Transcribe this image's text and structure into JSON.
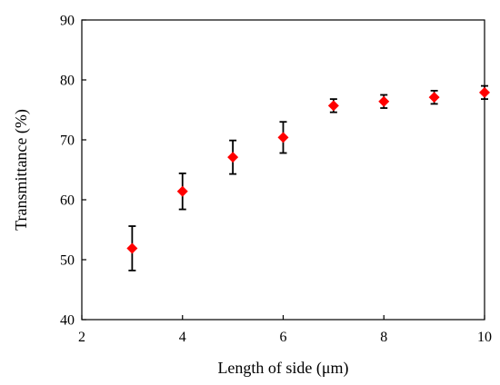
{
  "chart_data": {
    "type": "scatter",
    "title": "",
    "xlabel": "Length of side (μm)",
    "ylabel": "Transmittance (%)",
    "xlim": [
      2,
      10
    ],
    "ylim": [
      40,
      90
    ],
    "x_ticks": [
      2,
      4,
      6,
      8,
      10
    ],
    "y_ticks": [
      40,
      50,
      60,
      70,
      80,
      90
    ],
    "grid": false,
    "legend": "none",
    "marker": "diamond",
    "marker_color": "#ff0000",
    "errorbar_color": "#000000",
    "series": [
      {
        "x": [
          3,
          4,
          5,
          6,
          7,
          8,
          9,
          10
        ],
        "y": [
          51.9,
          61.4,
          67.1,
          70.4,
          75.7,
          76.4,
          77.1,
          77.9
        ],
        "error": [
          3.7,
          3.0,
          2.8,
          2.6,
          1.1,
          1.1,
          1.1,
          1.1
        ]
      }
    ]
  }
}
